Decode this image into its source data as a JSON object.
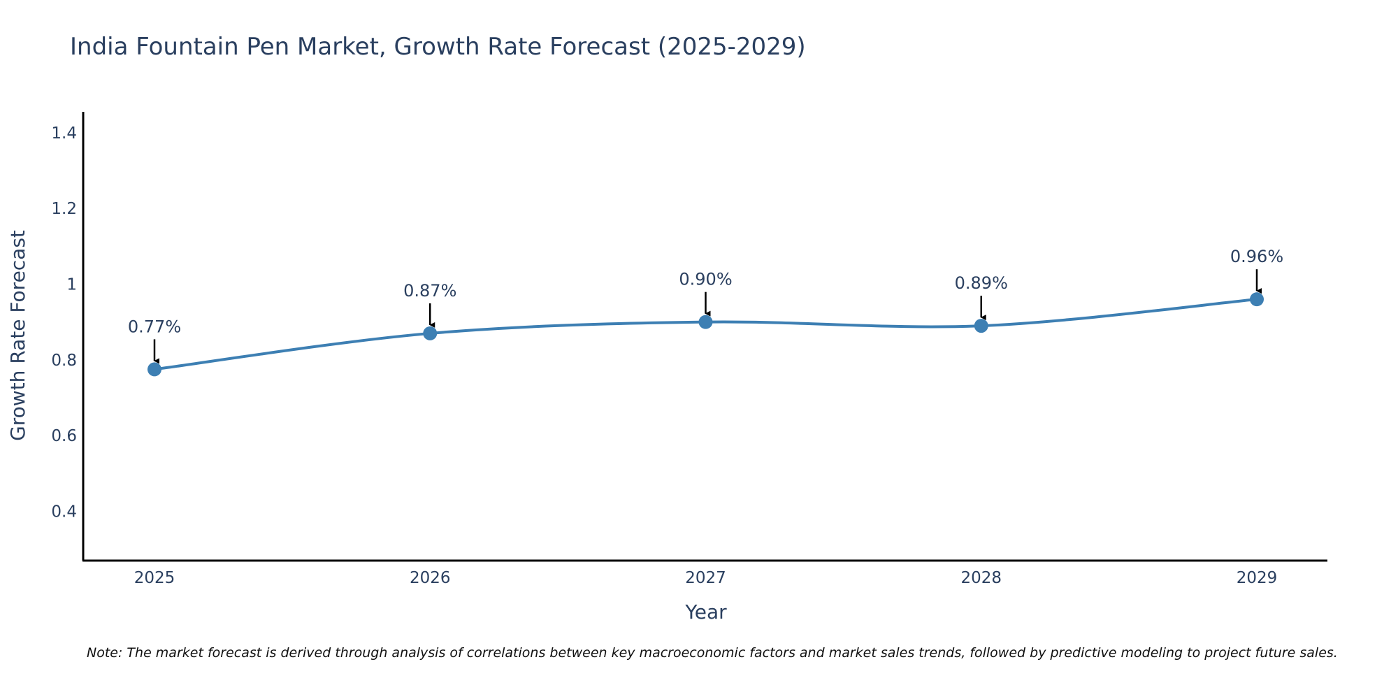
{
  "chart_data": {
    "type": "line",
    "title": "India Fountain Pen Market, Growth Rate Forecast (2025-2029)",
    "xlabel": "Year",
    "ylabel": "Growth Rate Forecast",
    "categories": [
      "2025",
      "2026",
      "2027",
      "2028",
      "2029"
    ],
    "series": [
      {
        "name": "Growth Rate Forecast",
        "values": [
          0.775,
          0.87,
          0.9,
          0.89,
          0.96
        ],
        "labels": [
          "0.77%",
          "0.87%",
          "0.90%",
          "0.89%",
          "0.96%"
        ],
        "color": "#3d7fb3"
      }
    ],
    "ylim": [
      0.27,
      1.455
    ],
    "yticks": [
      0.4,
      0.6,
      0.8,
      1,
      1.2,
      1.4
    ],
    "ytick_labels": [
      "0.4",
      "0.6",
      "0.8",
      "1",
      "1.2",
      "1.4"
    ],
    "grid": false,
    "note": "Note: The market forecast is derived through analysis of correlations between key macroeconomic factors and market sales trends, followed by predictive modeling to project future sales."
  }
}
